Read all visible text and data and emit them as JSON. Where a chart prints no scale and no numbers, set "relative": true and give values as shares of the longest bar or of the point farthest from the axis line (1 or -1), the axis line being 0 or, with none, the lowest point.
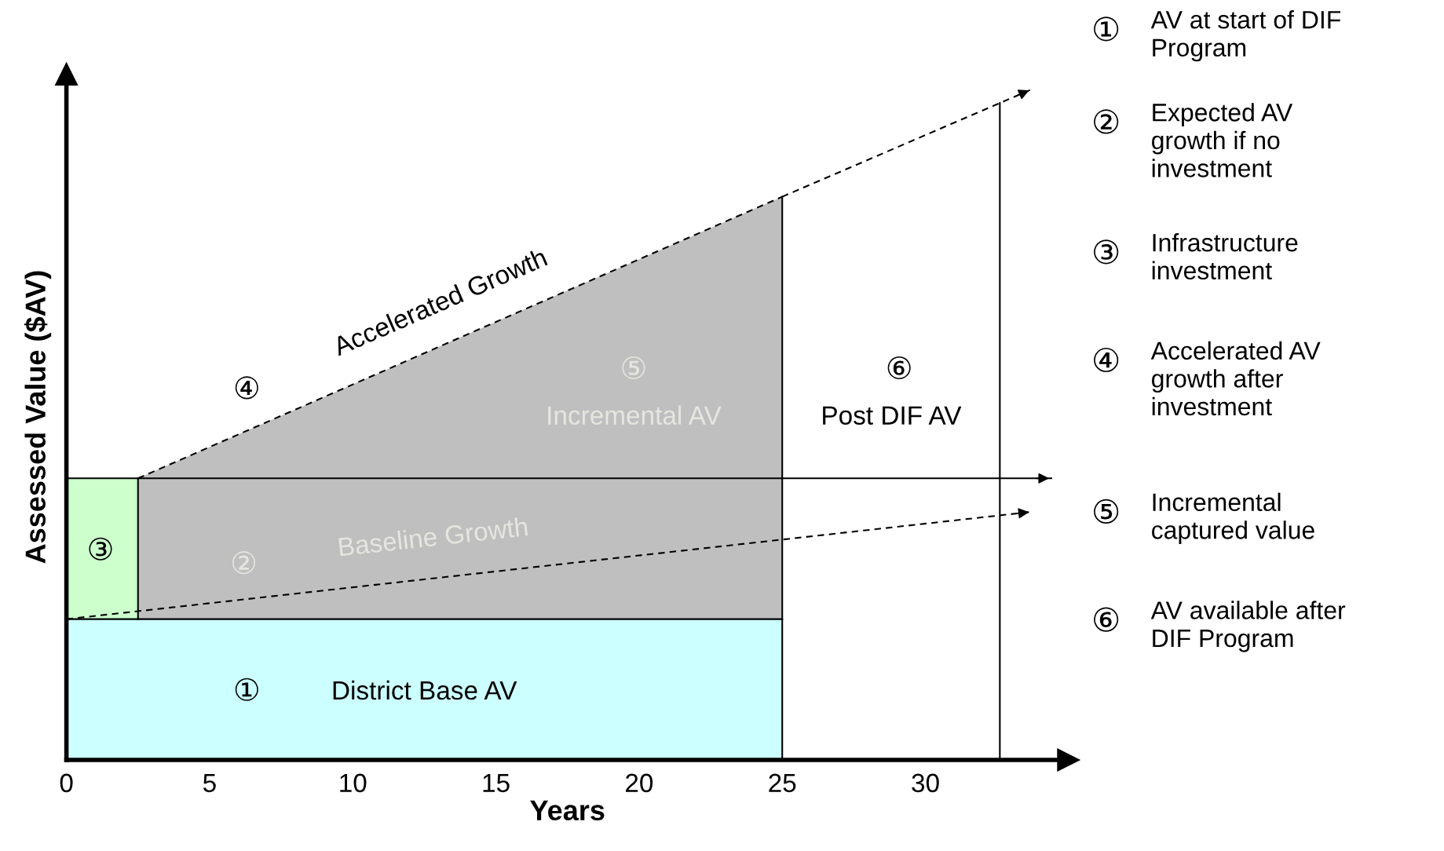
{
  "chart_data": {
    "type": "line",
    "relative": true,
    "xlabel": "Years",
    "ylabel": "Assessed Value ($AV)",
    "xlim": [
      0,
      35
    ],
    "xticks": [
      0,
      5,
      10,
      15,
      20,
      25,
      30
    ],
    "grid": false,
    "series": [
      {
        "type": "area",
        "color": "#bfbfbf",
        "x": [
          2.5,
          25
        ],
        "values": [
          0.42,
          0.84
        ],
        "line_style": "dashed"
      },
      {
        "type": "area",
        "color": "#ccffcc",
        "x": [
          0,
          2.5
        ],
        "values": [
          0.42,
          0.42
        ],
        "line_style": "solid"
      },
      {
        "type": "area",
        "color": "#ccffff",
        "x": [
          0,
          25
        ],
        "values": [
          0.21,
          0.21
        ],
        "line_style": "solid"
      },
      {
        "color": "#000000",
        "x": [
          2.5,
          2.5
        ],
        "values": [
          0.21,
          0.42
        ],
        "line_style": "solid"
      },
      {
        "color": "#000000",
        "x": [
          0,
          33.7
        ],
        "values": [
          0.21,
          0.37
        ],
        "line_style": "dashed"
      },
      {
        "color": "#000000",
        "x": [
          25,
          33.7
        ],
        "values": [
          0.84,
          1.0
        ],
        "line_style": "dashed"
      },
      {
        "color": "#000000",
        "x": [
          2.5,
          34.4
        ],
        "values": [
          0.42,
          0.42
        ],
        "line_style": "solid"
      },
      {
        "color": "#000000",
        "x": [
          25,
          25
        ],
        "values": [
          0,
          0.84
        ],
        "line_style": "solid"
      },
      {
        "color": "#000000",
        "x": [
          32.6,
          32.6
        ],
        "values": [
          0,
          0.98
        ],
        "line_style": "solid"
      }
    ],
    "annotations": [
      "①",
      "District Base AV",
      "②",
      "Baseline Growth",
      "③",
      "④",
      "Accelerated Growth",
      "⑤",
      "Incremental AV",
      "⑥",
      "Post DIF AV",
      "①",
      "AV at start of DIF\nProgram",
      "②",
      "Expected AV\ngrowth if no\ninvestment",
      "③",
      "Infrastructure\ninvestment",
      "④",
      "Accelerated AV\ngrowth after\ninvestment",
      "⑤",
      "Incremental\ncaptured value",
      "⑥",
      "AV available after\nDIF Program"
    ]
  }
}
